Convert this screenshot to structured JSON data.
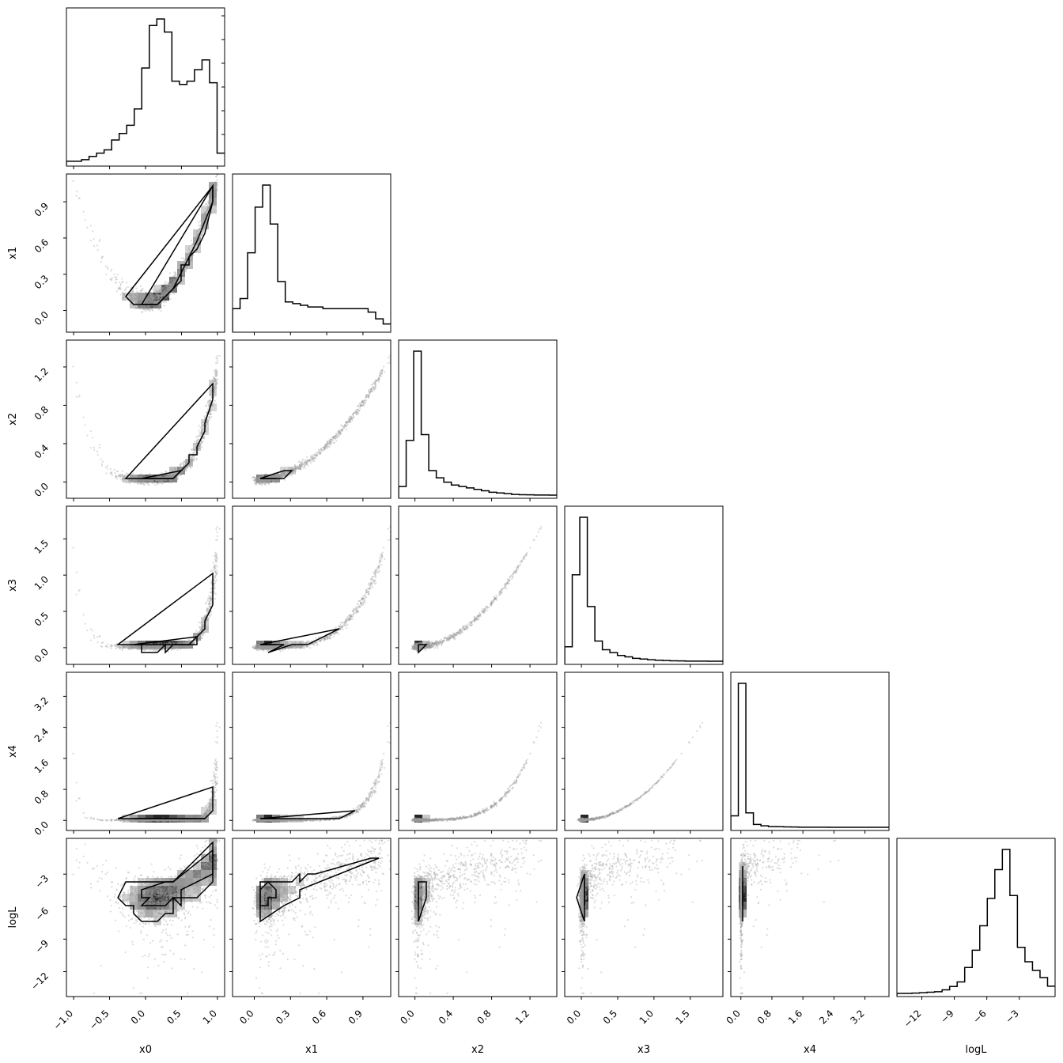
{
  "chart_data": {
    "type": "corner",
    "params": [
      "x0",
      "x1",
      "x2",
      "x3",
      "x4",
      "logL"
    ],
    "axis_labels": {
      "x": [
        "x0",
        "x1",
        "x2",
        "x3",
        "x4",
        "logL"
      ],
      "y": [
        "",
        "x1",
        "x2",
        "x3",
        "x4",
        "logL"
      ]
    },
    "ranges": [
      [
        -1.1,
        1.1
      ],
      [
        -0.18,
        1.13
      ],
      [
        -0.17,
        1.48
      ],
      [
        -0.23,
        1.95
      ],
      [
        -0.26,
        3.82
      ],
      [
        -14.3,
        0.3
      ]
    ],
    "ticks": [
      {
        "values": [
          -1.0,
          -0.5,
          0.0,
          0.5,
          1.0
        ],
        "labels": [
          "−1.0",
          "−0.5",
          "0.0",
          "0.5",
          "1.0"
        ]
      },
      {
        "values": [
          0.0,
          0.3,
          0.6,
          0.9
        ],
        "labels": [
          "0.0",
          "0.3",
          "0.6",
          "0.9"
        ]
      },
      {
        "values": [
          0.0,
          0.4,
          0.8,
          1.2
        ],
        "labels": [
          "0.0",
          "0.4",
          "0.8",
          "1.2"
        ]
      },
      {
        "values": [
          0.0,
          0.5,
          1.0,
          1.5
        ],
        "labels": [
          "0.0",
          "0.5",
          "1.0",
          "1.5"
        ]
      },
      {
        "values": [
          0.0,
          0.8,
          1.6,
          2.4,
          3.2
        ],
        "labels": [
          "0.0",
          "0.8",
          "1.6",
          "2.4",
          "3.2"
        ]
      },
      {
        "values": [
          -12,
          -9,
          -6,
          -3
        ],
        "labels": [
          "−12",
          "−9",
          "−6",
          "−3"
        ]
      }
    ],
    "histograms": [
      [
        0.01,
        0.01,
        0.02,
        0.04,
        0.06,
        0.08,
        0.14,
        0.18,
        0.23,
        0.33,
        0.58,
        0.84,
        0.88,
        0.8,
        0.5,
        0.48,
        0.5,
        0.57,
        0.63,
        0.49,
        0.06
      ],
      [
        0.12,
        0.18,
        0.45,
        0.72,
        0.85,
        0.62,
        0.28,
        0.16,
        0.15,
        0.14,
        0.13,
        0.13,
        0.12,
        0.12,
        0.12,
        0.12,
        0.12,
        0.12,
        0.1,
        0.06,
        0.03
      ],
      [
        0.06,
        0.38,
        1.0,
        0.42,
        0.17,
        0.12,
        0.09,
        0.07,
        0.06,
        0.05,
        0.04,
        0.03,
        0.02,
        0.015,
        0.01,
        0.005,
        0.003,
        0.002,
        0.001,
        0.0005,
        0
      ],
      [
        0.1,
        0.6,
        1.0,
        0.38,
        0.14,
        0.08,
        0.06,
        0.04,
        0.03,
        0.02,
        0.015,
        0.01,
        0.007,
        0.005,
        0.003,
        0.002,
        0.001,
        0.0007,
        0.0004,
        0.0002,
        0
      ],
      [
        0.08,
        1.0,
        0.1,
        0.02,
        0.01,
        0.005,
        0.004,
        0.003,
        0.002,
        0.001,
        0.001,
        0.0005,
        0.0004,
        0.0003,
        0.0002,
        0.0001,
        0.0001,
        5e-05,
        3e-05,
        1e-05,
        0
      ],
      [
        0,
        0,
        0.002,
        0.005,
        0.008,
        0.012,
        0.025,
        0.048,
        0.08,
        0.18,
        0.3,
        0.47,
        0.66,
        0.86,
        1.0,
        0.68,
        0.32,
        0.22,
        0.16,
        0.11,
        0.05
      ]
    ],
    "pair_shapes": [
      {
        "row": 1,
        "col": 0,
        "shape": "parabola: x1 ≈ x0 ^ 2 + 0.05 ; mode near (0.2, 0.06)"
      },
      {
        "row": 2,
        "col": 0,
        "shape": "curved: x2 rises steeply near x0 = 1 ; mode near (0.15, 0.05)"
      },
      {
        "row": 2,
        "col": 1,
        "shape": "increasing curve x2 ≈ x1 ^ 2 ; mode near (0.05, 0.05)"
      },
      {
        "row": 3,
        "col": 0,
        "shape": "flat band rising near x0 = 1 ; mode near (0.15, 0.02)"
      },
      {
        "row": 3,
        "col": 1,
        "shape": "increasing curve ; mode near (0.05, 0.02)"
      },
      {
        "row": 3,
        "col": 2,
        "shape": "increasing curve ; mode near (0.05, 0.02)"
      },
      {
        "row": 4,
        "col": 0,
        "shape": "flat band ; mode near (0.15, 0.02)"
      },
      {
        "row": 4,
        "col": 1,
        "shape": "flat band ; mode near (0.05, 0.02)"
      },
      {
        "row": 4,
        "col": 2,
        "shape": "increasing curve ; mode near (0.05, 0.02)"
      },
      {
        "row": 4,
        "col": 3,
        "shape": "increasing curve ; mode near (0.02, 0.02)"
      },
      {
        "row": 5,
        "col": 0,
        "shape": "logL increases with x0 ; mode near (0.2, -4.2)"
      },
      {
        "row": 5,
        "col": 1,
        "shape": "logL increases with x1 ; mode near (0.05, -4.2)"
      },
      {
        "row": 5,
        "col": 2,
        "shape": "logL increases with x2 ; mode near (0.05, -4.2)"
      },
      {
        "row": 5,
        "col": 3,
        "shape": "logL increases with x3 ; mode near (0.02, -4.2)"
      },
      {
        "row": 5,
        "col": 4,
        "shape": "narrow vertical blob ; mode near (0.02, -4.2)"
      }
    ],
    "grid": false,
    "colors": {
      "hist": "#000000",
      "contour": "#000000",
      "scatter": "#9a9a9a",
      "density_dark": "#000000",
      "background": "#ffffff"
    }
  }
}
